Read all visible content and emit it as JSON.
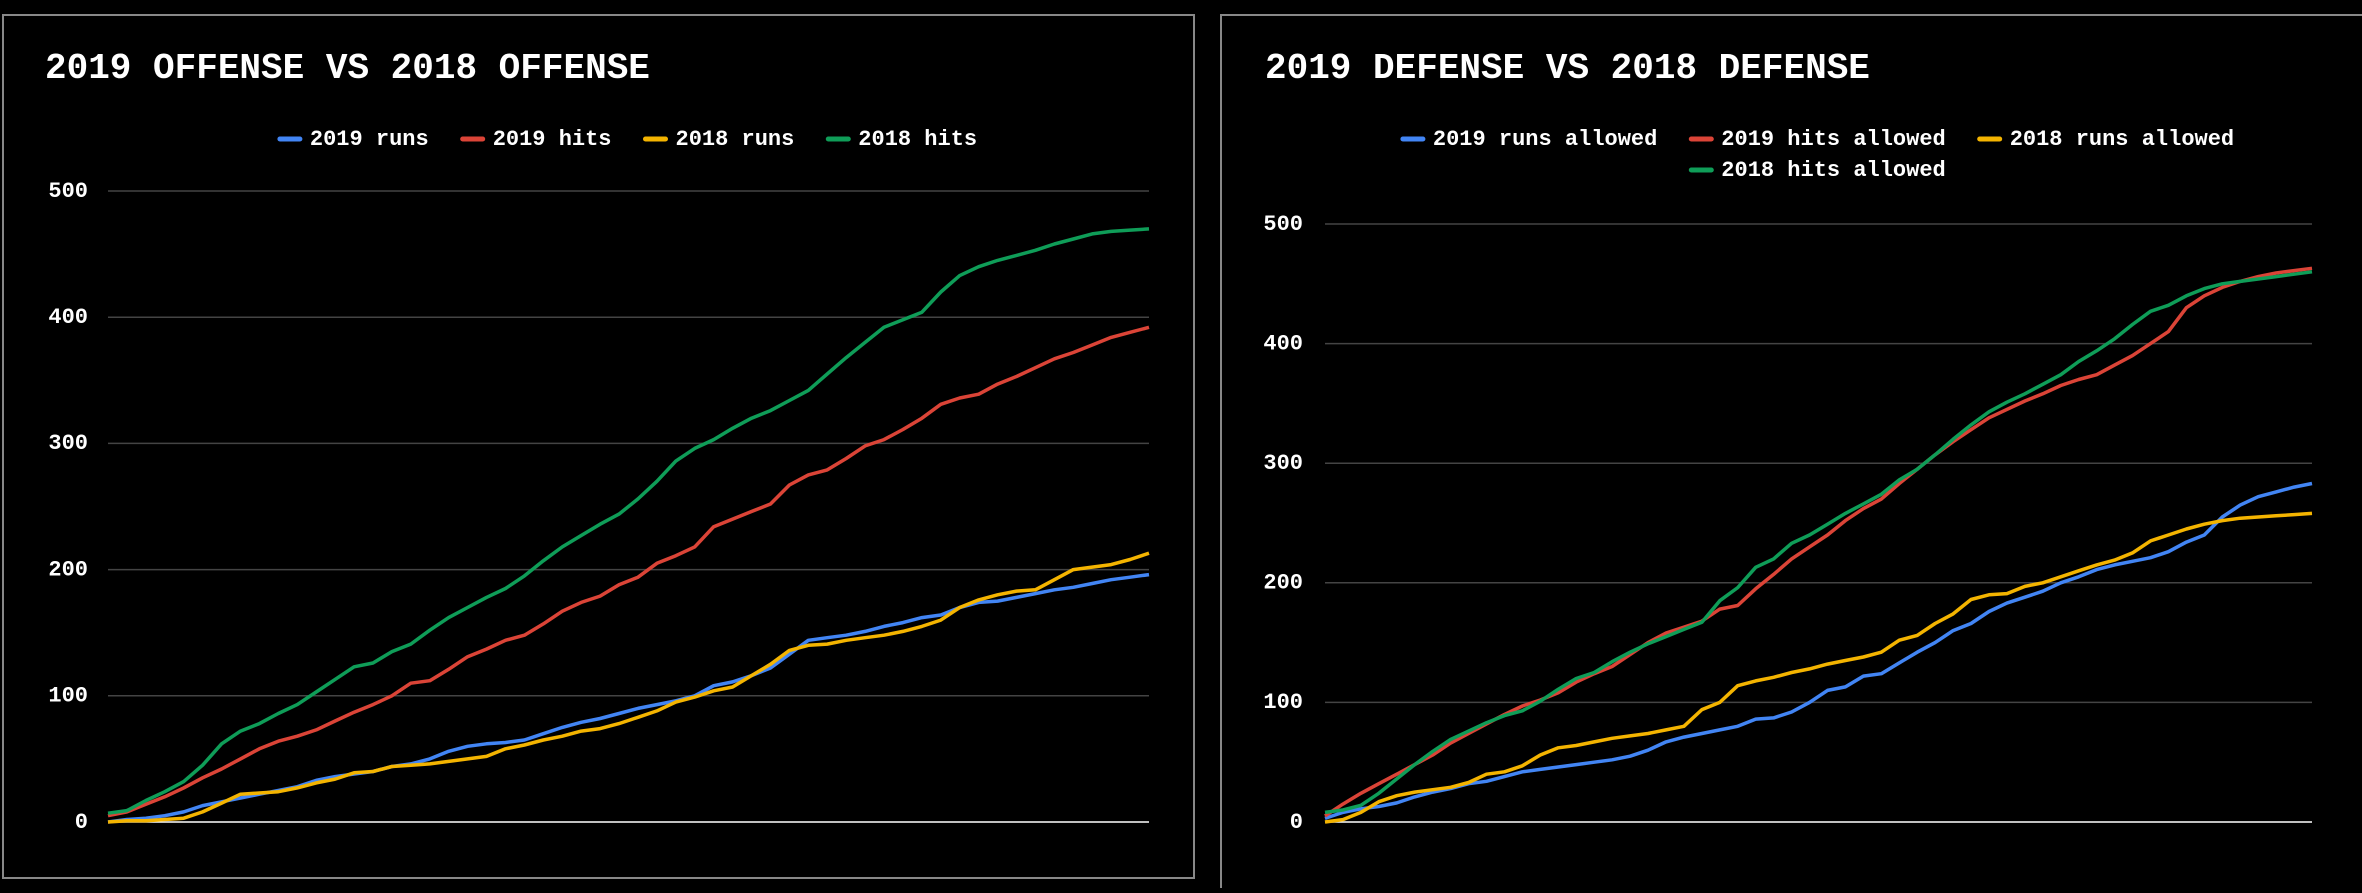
{
  "chart_data": [
    {
      "type": "line",
      "title": "2019 OFFENSE VS 2018 OFFENSE",
      "ylim": [
        0,
        500
      ],
      "yticks": [
        0,
        100,
        200,
        300,
        400,
        500
      ],
      "grid": true,
      "legend": "top",
      "series": [
        {
          "name": "2019 runs",
          "color": "#4285f4",
          "values": [
            0,
            2,
            3,
            5,
            8,
            13,
            16,
            19,
            22,
            25,
            28,
            33,
            36,
            38,
            40,
            44,
            46,
            50,
            56,
            60,
            62,
            63,
            65,
            70,
            75,
            79,
            82,
            86,
            90,
            93,
            96,
            100,
            108,
            111,
            116,
            122,
            133,
            144,
            146,
            148,
            151,
            155,
            158,
            162,
            164,
            170,
            174,
            175,
            178,
            181,
            184,
            186,
            189,
            192,
            194,
            196
          ]
        },
        {
          "name": "2019 hits",
          "color": "#db4437",
          "values": [
            5,
            8,
            14,
            20,
            27,
            35,
            42,
            50,
            58,
            64,
            68,
            73,
            80,
            87,
            93,
            100,
            110,
            112,
            121,
            131,
            137,
            144,
            148,
            157,
            167,
            174,
            179,
            188,
            194,
            205,
            211,
            218,
            234,
            240,
            246,
            252,
            267,
            275,
            279,
            288,
            298,
            303,
            311,
            320,
            331,
            336,
            339,
            347,
            353,
            360,
            367,
            372,
            378,
            384,
            388,
            392
          ]
        },
        {
          "name": "2018 runs",
          "color": "#f4b400",
          "values": [
            0,
            1,
            1,
            2,
            3,
            8,
            15,
            22,
            23,
            24,
            27,
            31,
            34,
            39,
            40,
            44,
            45,
            46,
            48,
            50,
            52,
            58,
            61,
            65,
            68,
            72,
            74,
            78,
            83,
            88,
            95,
            99,
            104,
            107,
            116,
            125,
            136,
            140,
            141,
            144,
            146,
            148,
            151,
            155,
            160,
            170,
            176,
            180,
            183,
            184,
            192,
            200,
            202,
            204,
            208,
            213
          ]
        },
        {
          "name": "2018 hits",
          "color": "#0f9d58",
          "values": [
            7,
            9,
            17,
            24,
            32,
            45,
            62,
            72,
            78,
            86,
            93,
            103,
            113,
            123,
            126,
            135,
            141,
            152,
            162,
            170,
            178,
            185,
            195,
            207,
            218,
            227,
            236,
            244,
            256,
            270,
            286,
            296,
            303,
            312,
            320,
            326,
            334,
            342,
            355,
            368,
            380,
            392,
            398,
            404,
            420,
            433,
            440,
            445,
            449,
            453,
            458,
            462,
            466,
            468,
            469,
            470
          ]
        }
      ]
    },
    {
      "type": "line",
      "title": "2019 DEFENSE VS 2018 DEFENSE",
      "ylim": [
        0,
        500
      ],
      "yticks": [
        0,
        100,
        200,
        300,
        400,
        500
      ],
      "grid": true,
      "legend": "top",
      "series": [
        {
          "name": "2019 runs allowed",
          "color": "#4285f4",
          "values": [
            3,
            8,
            11,
            13,
            16,
            21,
            25,
            28,
            32,
            34,
            38,
            42,
            44,
            46,
            48,
            50,
            52,
            55,
            60,
            67,
            71,
            74,
            77,
            80,
            86,
            87,
            92,
            100,
            110,
            113,
            122,
            124,
            133,
            142,
            150,
            160,
            166,
            176,
            183,
            188,
            193,
            200,
            205,
            211,
            215,
            218,
            221,
            226,
            234,
            240,
            255,
            265,
            272,
            276,
            280,
            283
          ]
        },
        {
          "name": "2019 hits allowed",
          "color": "#db4437",
          "values": [
            5,
            15,
            24,
            32,
            40,
            48,
            56,
            66,
            74,
            82,
            90,
            97,
            102,
            108,
            117,
            124,
            130,
            140,
            150,
            158,
            163,
            168,
            178,
            181,
            195,
            207,
            220,
            230,
            240,
            252,
            262,
            270,
            283,
            295,
            307,
            318,
            328,
            338,
            345,
            352,
            358,
            365,
            370,
            374,
            382,
            390,
            400,
            410,
            430,
            440,
            447,
            452,
            456,
            459,
            461,
            463
          ]
        },
        {
          "name": "2018 runs allowed",
          "color": "#f4b400",
          "values": [
            0,
            2,
            8,
            17,
            22,
            25,
            27,
            29,
            33,
            40,
            42,
            47,
            56,
            62,
            64,
            67,
            70,
            72,
            74,
            77,
            80,
            94,
            100,
            114,
            118,
            121,
            125,
            128,
            132,
            135,
            138,
            142,
            152,
            156,
            166,
            174,
            186,
            190,
            191,
            197,
            200,
            205,
            210,
            215,
            219,
            225,
            235,
            240,
            245,
            249,
            252,
            254,
            255,
            256,
            257,
            258
          ]
        },
        {
          "name": "2018 hits allowed",
          "color": "#0f9d58",
          "values": [
            8,
            10,
            14,
            24,
            36,
            48,
            59,
            69,
            76,
            83,
            89,
            93,
            101,
            111,
            120,
            125,
            134,
            142,
            149,
            155,
            161,
            167,
            185,
            196,
            213,
            220,
            233,
            240,
            249,
            258,
            266,
            274,
            286,
            295,
            307,
            320,
            332,
            343,
            351,
            358,
            366,
            374,
            385,
            394,
            404,
            416,
            427,
            432,
            440,
            446,
            450,
            452,
            454,
            456,
            458,
            460
          ]
        }
      ]
    }
  ]
}
